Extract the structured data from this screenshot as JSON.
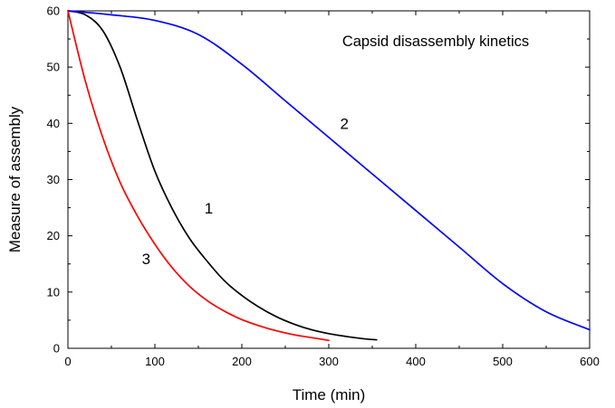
{
  "chart_data": {
    "type": "line",
    "title": "Capsid  disassembly kinetics",
    "xlabel": "Time  (min)",
    "ylabel": "Measure  of  assembly",
    "xlim": [
      0,
      600
    ],
    "ylim": [
      0,
      60
    ],
    "xticks": [
      0,
      100,
      200,
      300,
      400,
      500,
      600
    ],
    "yticks": [
      0,
      10,
      20,
      30,
      40,
      50,
      60
    ],
    "grid": false,
    "legend": "none",
    "series": [
      {
        "label": "1",
        "color": "#000000",
        "x": [
          0,
          20,
          40,
          60,
          80,
          100,
          120,
          140,
          160,
          180,
          200,
          220,
          240,
          260,
          280,
          300,
          320,
          340,
          355
        ],
        "y": [
          60,
          59.3,
          56.5,
          50,
          40.5,
          31.5,
          24.8,
          19.5,
          15.5,
          12,
          9.4,
          7.3,
          5.6,
          4.3,
          3.3,
          2.6,
          2.1,
          1.7,
          1.5
        ]
      },
      {
        "label": "2",
        "color": "#0000ff",
        "x": [
          0,
          50,
          100,
          150,
          200,
          250,
          300,
          350,
          400,
          450,
          500,
          550,
          600
        ],
        "y": [
          60,
          59.3,
          58.3,
          55.8,
          50.5,
          44,
          37.5,
          31,
          24.5,
          18,
          11.5,
          6.5,
          3.3
        ]
      },
      {
        "label": "3",
        "color": "#ff0000",
        "x": [
          0,
          20,
          40,
          60,
          80,
          100,
          120,
          140,
          160,
          180,
          200,
          220,
          240,
          260,
          280,
          300
        ],
        "y": [
          60,
          47.5,
          37.5,
          29.5,
          23.5,
          18.5,
          14.3,
          11,
          8.5,
          6.6,
          5.1,
          4,
          3.1,
          2.4,
          1.9,
          1.4
        ]
      }
    ],
    "annotations": [
      {
        "text": "1",
        "x": 162,
        "y": 24
      },
      {
        "text": "2",
        "x": 318,
        "y": 39
      },
      {
        "text": "3",
        "x": 90,
        "y": 15
      }
    ]
  }
}
